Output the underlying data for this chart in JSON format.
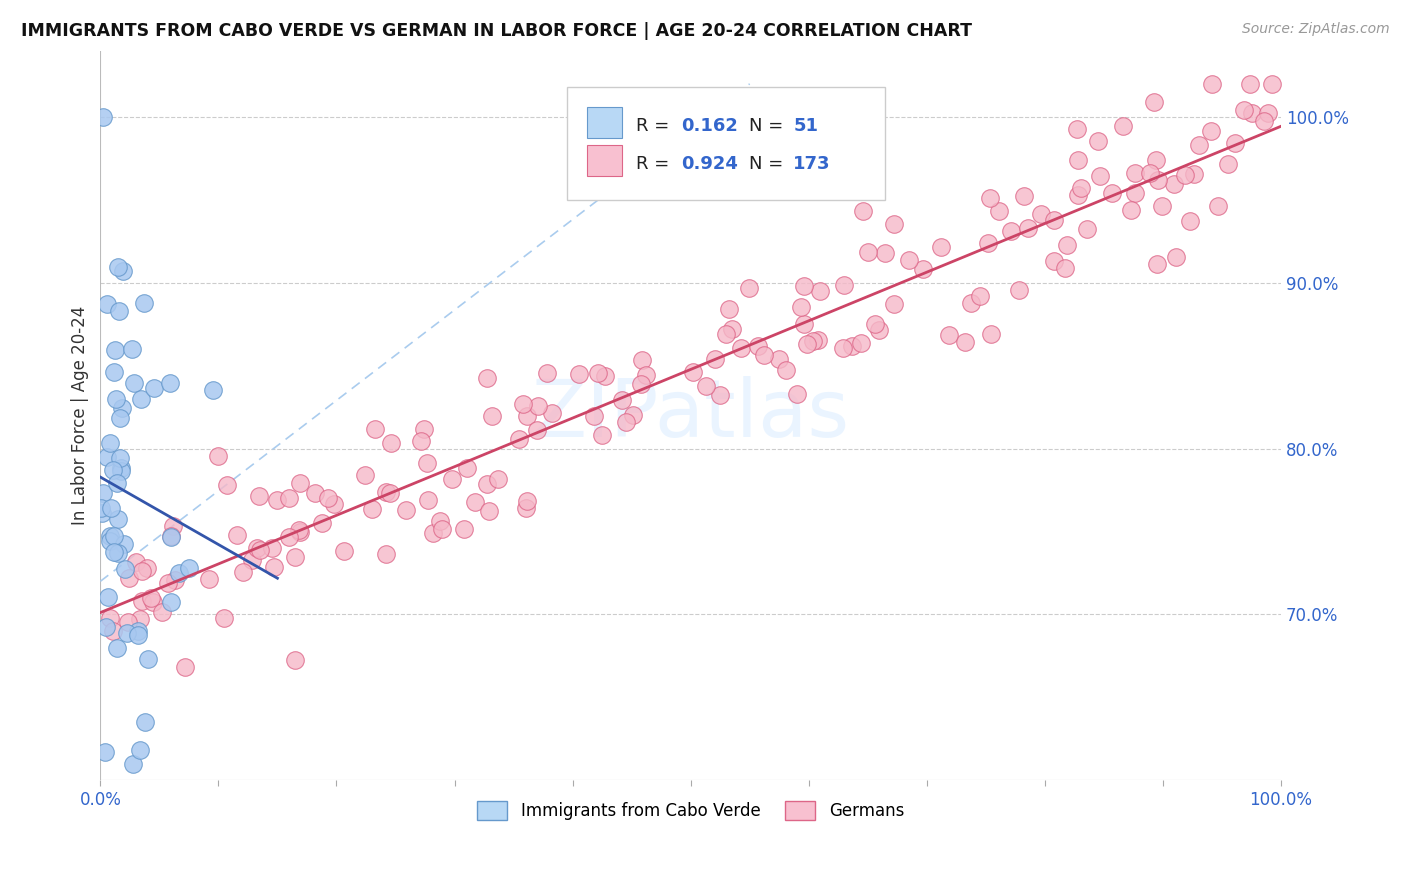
{
  "title": "IMMIGRANTS FROM CABO VERDE VS GERMAN IN LABOR FORCE | AGE 20-24 CORRELATION CHART",
  "source": "Source: ZipAtlas.com",
  "ylabel": "In Labor Force | Age 20-24",
  "xlim": [
    0.0,
    1.0
  ],
  "ylim": [
    0.6,
    1.04
  ],
  "yticks_right": [
    0.7,
    0.8,
    0.9,
    1.0
  ],
  "ytick_labels_right": [
    "70.0%",
    "80.0%",
    "90.0%",
    "100.0%"
  ],
  "grid_color": "#cccccc",
  "background_color": "#ffffff",
  "cabo_verde_fill": "#a8c8f0",
  "cabo_verde_edge": "#6699cc",
  "german_fill": "#f5b8c8",
  "german_edge": "#dd6688",
  "cabo_verde_line_color": "#3355aa",
  "german_line_color": "#cc4466",
  "dashed_line_color": "#aaccee",
  "watermark_color": "#ddeeff",
  "cabo_verde_R": 0.162,
  "cabo_verde_N": 51,
  "german_R": 0.924,
  "german_N": 173,
  "legend_cabo_fill": "#b8d8f5",
  "legend_german_fill": "#f8c0d0",
  "legend_text_color": "#222222",
  "legend_value_color": "#3366cc",
  "tick_color": "#3366cc",
  "title_color": "#111111",
  "source_color": "#999999"
}
